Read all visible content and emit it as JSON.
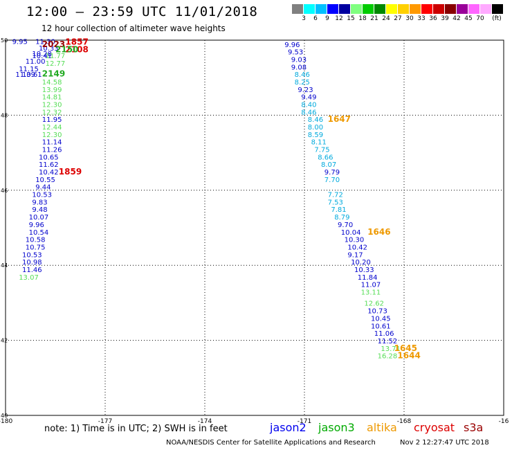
{
  "header": {
    "title": "12:00 – 23:59 UTC 11/01/2018",
    "subtitle": "12 hour collection of altimeter wave heights"
  },
  "color_scale": {
    "unit": "(ft)",
    "colors": [
      "#808080",
      "#00ffff",
      "#00c0ff",
      "#0000ff",
      "#0000a0",
      "#80ff80",
      "#00cc00",
      "#008800",
      "#ffff00",
      "#ffd000",
      "#ff9900",
      "#ff0000",
      "#cc0000",
      "#880000",
      "#990099",
      "#ff66ff",
      "#ffaaff",
      "#000000"
    ],
    "labels": [
      "3",
      "6",
      "9",
      "12",
      "15",
      "18",
      "21",
      "24",
      "27",
      "30",
      "33",
      "36",
      "39",
      "42",
      "45",
      "70"
    ]
  },
  "chart_data": {
    "type": "scatter",
    "title": "12:00 – 23:59 UTC 11/01/2018",
    "subtitle": "12 hour collection of altimeter wave heights",
    "xlim": [
      -180,
      -165
    ],
    "ylim": [
      40,
      50
    ],
    "x_ticks": [
      "-180",
      "-177",
      "-174",
      "-171",
      "-168",
      "-16"
    ],
    "y_ticks": [
      "50",
      "48",
      "46",
      "44",
      "42",
      "40"
    ],
    "grid": true,
    "series": [
      {
        "name": "track-west",
        "points": [
          {
            "x": -179.8,
            "y": 49.9,
            "label": "9.95",
            "color": "#0000cc"
          },
          {
            "x": -179.1,
            "y": 49.9,
            "label": "11.30",
            "color": "#0000cc"
          },
          {
            "x": -179.0,
            "y": 49.72,
            "label": "10.33",
            "color": "#0000cc"
          },
          {
            "x": -179.2,
            "y": 49.58,
            "label": "10.28",
            "color": "#0000cc"
          },
          {
            "x": -179.2,
            "y": 49.52,
            "label": "10.41",
            "color": "#0000cc"
          },
          {
            "x": -178.8,
            "y": 49.52,
            "label": "11.77",
            "color": "#55dd55"
          },
          {
            "x": -179.4,
            "y": 49.37,
            "label": "11.00",
            "color": "#0000cc"
          },
          {
            "x": -178.8,
            "y": 49.32,
            "label": "12.77",
            "color": "#55dd55"
          },
          {
            "x": -179.6,
            "y": 49.17,
            "label": "11.15",
            "color": "#0000cc"
          },
          {
            "x": -179.7,
            "y": 49.02,
            "label": "11.39",
            "color": "#0000cc"
          },
          {
            "x": -179.5,
            "y": 49.02,
            "label": "10.61",
            "color": "#0000cc"
          },
          {
            "x": -178.9,
            "y": 48.82,
            "label": "14.58",
            "color": "#55dd55"
          },
          {
            "x": -178.9,
            "y": 48.62,
            "label": "13.99",
            "color": "#55dd55"
          },
          {
            "x": -178.9,
            "y": 48.42,
            "label": "14.81",
            "color": "#55dd55"
          },
          {
            "x": -178.9,
            "y": 48.22,
            "label": "12.30",
            "color": "#55dd55"
          },
          {
            "x": -178.9,
            "y": 48.02,
            "label": "12.32",
            "color": "#55dd55"
          },
          {
            "x": -178.9,
            "y": 47.82,
            "label": "11.95",
            "color": "#0000cc"
          },
          {
            "x": -178.9,
            "y": 47.62,
            "label": "12.44",
            "color": "#55dd55"
          },
          {
            "x": -178.9,
            "y": 47.42,
            "label": "12.30",
            "color": "#55dd55"
          },
          {
            "x": -178.9,
            "y": 47.22,
            "label": "11.14",
            "color": "#0000cc"
          },
          {
            "x": -178.9,
            "y": 47.02,
            "label": "11.26",
            "color": "#0000cc"
          },
          {
            "x": -179.0,
            "y": 46.82,
            "label": "10.65",
            "color": "#0000cc"
          },
          {
            "x": -179.0,
            "y": 46.62,
            "label": "11.62",
            "color": "#0000cc"
          },
          {
            "x": -179.0,
            "y": 46.42,
            "label": "10.42",
            "color": "#0000cc"
          },
          {
            "x": -179.1,
            "y": 46.22,
            "label": "10.55",
            "color": "#0000cc"
          },
          {
            "x": -179.1,
            "y": 46.02,
            "label": "9.44",
            "color": "#0000cc"
          },
          {
            "x": -179.2,
            "y": 45.82,
            "label": "10.53",
            "color": "#0000cc"
          },
          {
            "x": -179.2,
            "y": 45.62,
            "label": "9.83",
            "color": "#0000cc"
          },
          {
            "x": -179.2,
            "y": 45.42,
            "label": "9.48",
            "color": "#0000cc"
          },
          {
            "x": -179.3,
            "y": 45.22,
            "label": "10.07",
            "color": "#0000cc"
          },
          {
            "x": -179.3,
            "y": 45.02,
            "label": "9.96",
            "color": "#0000cc"
          },
          {
            "x": -179.3,
            "y": 44.82,
            "label": "10.54",
            "color": "#0000cc"
          },
          {
            "x": -179.4,
            "y": 44.62,
            "label": "10.58",
            "color": "#0000cc"
          },
          {
            "x": -179.4,
            "y": 44.42,
            "label": "10.75",
            "color": "#0000cc"
          },
          {
            "x": -179.5,
            "y": 44.22,
            "label": "10.53",
            "color": "#0000cc"
          },
          {
            "x": -179.5,
            "y": 44.02,
            "label": "10.98",
            "color": "#0000cc"
          },
          {
            "x": -179.5,
            "y": 43.82,
            "label": "11.46",
            "color": "#0000cc"
          },
          {
            "x": -179.6,
            "y": 43.62,
            "label": "13.07",
            "color": "#55dd55"
          }
        ]
      },
      {
        "name": "track-east",
        "points": [
          {
            "x": -171.6,
            "y": 49.82,
            "label": "9.96",
            "color": "#0000cc"
          },
          {
            "x": -171.5,
            "y": 49.62,
            "label": "9.53",
            "color": "#0000cc"
          },
          {
            "x": -171.4,
            "y": 49.42,
            "label": "9.03",
            "color": "#0000cc"
          },
          {
            "x": -171.4,
            "y": 49.22,
            "label": "9.08",
            "color": "#0000cc"
          },
          {
            "x": -171.3,
            "y": 49.02,
            "label": "8.46",
            "color": "#00aadd"
          },
          {
            "x": -171.3,
            "y": 48.82,
            "label": "8.25",
            "color": "#00aadd"
          },
          {
            "x": -171.2,
            "y": 48.62,
            "label": "9.23",
            "color": "#0000cc"
          },
          {
            "x": -171.1,
            "y": 48.42,
            "label": "9.49",
            "color": "#0000cc"
          },
          {
            "x": -171.1,
            "y": 48.22,
            "label": "8.40",
            "color": "#00aadd"
          },
          {
            "x": -171.1,
            "y": 48.02,
            "label": "8.46",
            "color": "#00aadd"
          },
          {
            "x": -170.9,
            "y": 47.82,
            "label": "8.46",
            "color": "#00aadd"
          },
          {
            "x": -170.9,
            "y": 47.62,
            "label": "8.00",
            "color": "#00aadd"
          },
          {
            "x": -170.9,
            "y": 47.42,
            "label": "8.59",
            "color": "#00aadd"
          },
          {
            "x": -170.8,
            "y": 47.22,
            "label": "8.11",
            "color": "#00aadd"
          },
          {
            "x": -170.7,
            "y": 47.02,
            "label": "7.75",
            "color": "#00aadd"
          },
          {
            "x": -170.6,
            "y": 46.82,
            "label": "8.66",
            "color": "#00aadd"
          },
          {
            "x": -170.5,
            "y": 46.62,
            "label": "8.07",
            "color": "#00aadd"
          },
          {
            "x": -170.4,
            "y": 46.42,
            "label": "9.79",
            "color": "#0000cc"
          },
          {
            "x": -170.4,
            "y": 46.22,
            "label": "7.70",
            "color": "#00aadd"
          },
          {
            "x": -170.3,
            "y": 45.82,
            "label": "7.72",
            "color": "#00aadd"
          },
          {
            "x": -170.3,
            "y": 45.62,
            "label": "7.53",
            "color": "#00aadd"
          },
          {
            "x": -170.2,
            "y": 45.42,
            "label": "7.81",
            "color": "#00aadd"
          },
          {
            "x": -170.1,
            "y": 45.22,
            "label": "8.79",
            "color": "#00aadd"
          },
          {
            "x": -170.0,
            "y": 45.02,
            "label": "9.70",
            "color": "#0000cc"
          },
          {
            "x": -169.9,
            "y": 44.82,
            "label": "10.04",
            "color": "#0000cc"
          },
          {
            "x": -169.8,
            "y": 44.62,
            "label": "10.30",
            "color": "#0000cc"
          },
          {
            "x": -169.7,
            "y": 44.42,
            "label": "10.42",
            "color": "#0000cc"
          },
          {
            "x": -169.7,
            "y": 44.22,
            "label": "9.17",
            "color": "#0000cc"
          },
          {
            "x": -169.6,
            "y": 44.02,
            "label": "10.20",
            "color": "#0000cc"
          },
          {
            "x": -169.5,
            "y": 43.82,
            "label": "10.33",
            "color": "#0000cc"
          },
          {
            "x": -169.4,
            "y": 43.62,
            "label": "11.84",
            "color": "#0000cc"
          },
          {
            "x": -169.3,
            "y": 43.42,
            "label": "11.07",
            "color": "#0000cc"
          },
          {
            "x": -169.3,
            "y": 43.22,
            "label": "13.11",
            "color": "#55dd55"
          },
          {
            "x": -169.2,
            "y": 42.92,
            "label": "12.62",
            "color": "#55dd55"
          },
          {
            "x": -169.1,
            "y": 42.72,
            "label": "10.73",
            "color": "#0000cc"
          },
          {
            "x": -169.0,
            "y": 42.52,
            "label": "10.45",
            "color": "#0000cc"
          },
          {
            "x": -169.0,
            "y": 42.32,
            "label": "10.61",
            "color": "#0000cc"
          },
          {
            "x": -168.9,
            "y": 42.12,
            "label": "11.06",
            "color": "#0000cc"
          },
          {
            "x": -168.8,
            "y": 41.92,
            "label": "11.52",
            "color": "#0000cc"
          },
          {
            "x": -168.7,
            "y": 41.72,
            "label": "13.71",
            "color": "#55dd55"
          },
          {
            "x": -168.8,
            "y": 41.52,
            "label": "16.28",
            "color": "#55dd55"
          }
        ]
      }
    ],
    "time_labels": [
      {
        "x": -178.2,
        "y": 49.88,
        "text": "1857",
        "color": "#dd0000"
      },
      {
        "x": -178.2,
        "y": 49.68,
        "text": "2108",
        "color": "#dd0000"
      },
      {
        "x": -178.9,
        "y": 49.82,
        "text": "2023",
        "color": "#990000"
      },
      {
        "x": -178.5,
        "y": 49.68,
        "text": "2150",
        "color": "#22aa22"
      },
      {
        "x": -178.9,
        "y": 49.03,
        "text": "2149",
        "color": "#22aa22"
      },
      {
        "x": -178.4,
        "y": 46.42,
        "text": "1859",
        "color": "#dd0000"
      },
      {
        "x": -170.3,
        "y": 47.82,
        "text": "1647",
        "color": "#ee9900"
      },
      {
        "x": -169.1,
        "y": 44.82,
        "text": "1646",
        "color": "#ee9900"
      },
      {
        "x": -168.3,
        "y": 41.72,
        "text": "1645",
        "color": "#ee9900"
      },
      {
        "x": -168.2,
        "y": 41.52,
        "text": "1644",
        "color": "#ee9900"
      }
    ]
  },
  "footer": {
    "note": "note:  1) Time is in UTC;  2) SWH is in feet",
    "satellites": [
      {
        "name": "jason2",
        "color": "#0000ee"
      },
      {
        "name": "jason3",
        "color": "#00aa00"
      },
      {
        "name": "altika",
        "color": "#ee9900"
      },
      {
        "name": "cryosat",
        "color": "#dd0000"
      },
      {
        "name": "s3a",
        "color": "#990000"
      }
    ],
    "credit": "NOAA/NESDIS Center for Satellite Applications and Research",
    "timestamp": "Nov  2 12:27:47 UTC 2018"
  }
}
